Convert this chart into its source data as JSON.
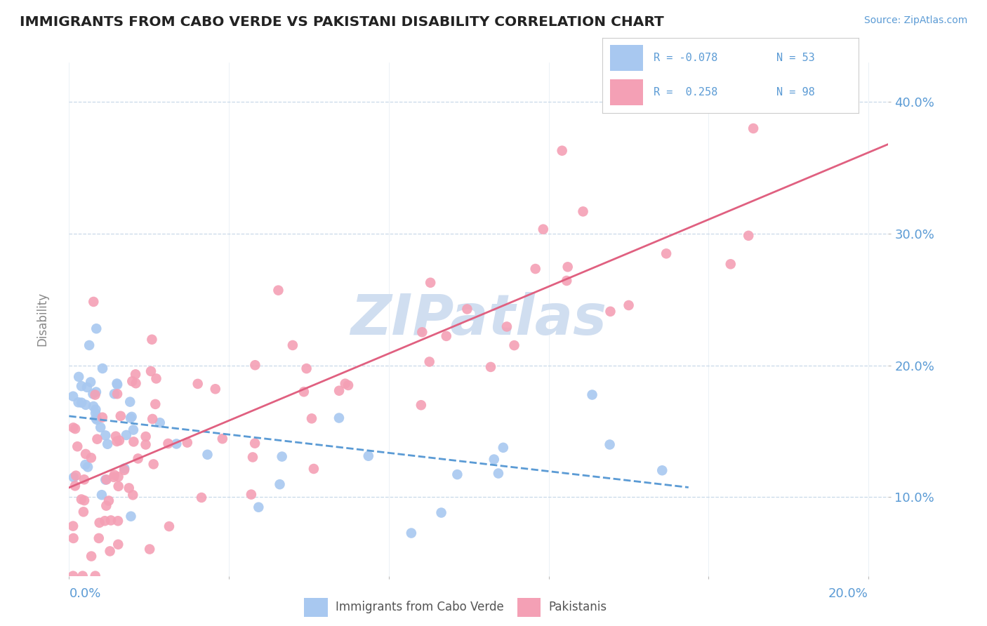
{
  "title": "IMMIGRANTS FROM CABO VERDE VS PAKISTANI DISABILITY CORRELATION CHART",
  "source": "Source: ZipAtlas.com",
  "ylabel": "Disability",
  "xlim": [
    0.0,
    0.205
  ],
  "ylim": [
    0.04,
    0.43
  ],
  "yticks": [
    0.1,
    0.2,
    0.3,
    0.4
  ],
  "ytick_labels": [
    "10.0%",
    "20.0%",
    "30.0%",
    "40.0%"
  ],
  "xticks": [
    0.0,
    0.04,
    0.08,
    0.12,
    0.16,
    0.2
  ],
  "color_blue": "#A8C8F0",
  "color_pink": "#F4A0B5",
  "color_blue_line": "#5B9BD5",
  "color_pink_line": "#E06080",
  "color_axis_text": "#5B9BD5",
  "color_grid": "#C8D8E8",
  "watermark_color": "#D0DEF0",
  "background_color": "#FFFFFF",
  "n_cv": 53,
  "n_pk": 98,
  "R_cv": -0.078,
  "R_pk": 0.258
}
